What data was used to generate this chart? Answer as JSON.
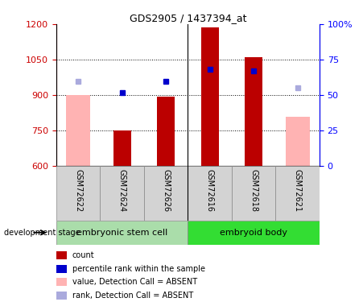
{
  "title": "GDS2905 / 1437394_at",
  "samples": [
    "GSM72622",
    "GSM72624",
    "GSM72626",
    "GSM72616",
    "GSM72618",
    "GSM72621"
  ],
  "ylim_left": [
    600,
    1200
  ],
  "ylim_right": [
    0,
    100
  ],
  "yticks_left": [
    600,
    750,
    900,
    1050,
    1200
  ],
  "yticks_right": [
    0,
    25,
    50,
    75,
    100
  ],
  "ytick_right_labels": [
    "0",
    "25",
    "50",
    "75",
    "100%"
  ],
  "bar_values": [
    null,
    750,
    893,
    1185,
    1060,
    null
  ],
  "bar_absent_values": [
    902,
    null,
    null,
    null,
    null,
    808
  ],
  "rank_present_values": [
    null,
    910,
    958,
    1010,
    1002,
    null
  ],
  "rank_absent_values": [
    958,
    null,
    null,
    null,
    null,
    930
  ],
  "bar_color": "#BB0000",
  "bar_absent_color": "#FFB3B3",
  "rank_present_color": "#0000CC",
  "rank_absent_color": "#AAAADD",
  "group_labels": [
    "embryonic stem cell",
    "embryoid body"
  ],
  "group_colors": [
    "#AADDAA",
    "#33DD33"
  ],
  "legend_items": [
    {
      "label": "count",
      "color": "#BB0000"
    },
    {
      "label": "percentile rank within the sample",
      "color": "#0000CC"
    },
    {
      "label": "value, Detection Call = ABSENT",
      "color": "#FFB3B3"
    },
    {
      "label": "rank, Detection Call = ABSENT",
      "color": "#AAAADD"
    }
  ],
  "ylabel_left_color": "#CC0000",
  "ylabel_right_color": "#0000FF",
  "bar_width": 0.4,
  "absent_bar_width": 0.55
}
